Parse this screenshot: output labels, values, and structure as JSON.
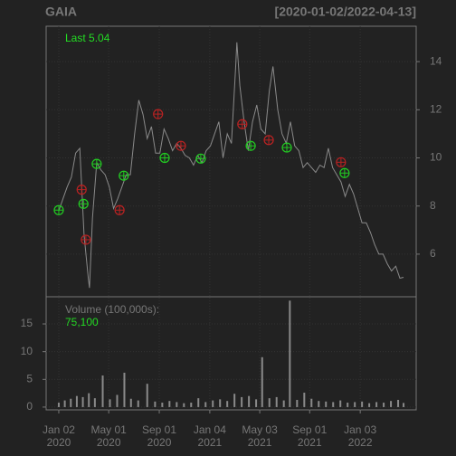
{
  "chart_data": {
    "type": "line",
    "title": "GAIA",
    "subtitle": "[2020-01-02/2022-04-13]",
    "last_label": "Last 5.04",
    "color": "#8a8a8a",
    "x": [
      0,
      7,
      14,
      21,
      28,
      35,
      42,
      49,
      51,
      56,
      63,
      70,
      77,
      84,
      91,
      98,
      105,
      112,
      119,
      126,
      133,
      140,
      147,
      154,
      161,
      168,
      175,
      182,
      189,
      196,
      203,
      210,
      217,
      224,
      231,
      238,
      245,
      252,
      259,
      266,
      273,
      280,
      287,
      294,
      296,
      301,
      308,
      315,
      322,
      329,
      336,
      343,
      350,
      356,
      364,
      371,
      378,
      385,
      392,
      399,
      406,
      413,
      420,
      427,
      434,
      441,
      448,
      455,
      462,
      469,
      476,
      483,
      490,
      497,
      504,
      511,
      518,
      525,
      532,
      539,
      546,
      553,
      560,
      567,
      573
    ],
    "values": [
      7.8,
      8.3,
      8.8,
      9.2,
      10.2,
      10.4,
      6.8,
      5.0,
      4.6,
      7.5,
      9.8,
      9.5,
      9.3,
      8.8,
      7.9,
      8.3,
      8.8,
      9.3,
      9.3,
      11.0,
      12.4,
      11.8,
      10.8,
      11.3,
      10.2,
      10.2,
      11.2,
      10.8,
      10.3,
      10.6,
      10.4,
      10.1,
      10.0,
      9.7,
      10.1,
      9.8,
      10.3,
      10.5,
      11.0,
      11.5,
      10.0,
      11.0,
      10.6,
      13.8,
      14.8,
      13.0,
      11.5,
      10.3,
      11.5,
      12.2,
      11.2,
      11.0,
      12.8,
      13.8,
      12.0,
      11.0,
      10.6,
      11.5,
      10.5,
      10.3,
      9.6,
      9.8,
      9.6,
      9.4,
      9.7,
      9.6,
      10.4,
      9.6,
      9.3,
      9.0,
      8.4,
      8.9,
      8.5,
      7.9,
      7.3,
      7.3,
      6.9,
      6.4,
      6.0,
      6.0,
      5.6,
      5.3,
      5.5,
      5.0,
      5.04
    ],
    "markers": [
      {
        "color": "#22cc22",
        "x": [
          0,
          41,
          63,
          108,
          176,
          236,
          319,
          379,
          475
        ],
        "y": [
          7.83,
          8.09,
          9.75,
          9.26,
          10.0,
          9.97,
          10.5,
          10.43,
          9.37
        ]
      },
      {
        "color": "#bb2222",
        "x": [
          38,
          45,
          101,
          165,
          203,
          305,
          349,
          469
        ],
        "y": [
          8.68,
          6.6,
          7.83,
          11.82,
          10.5,
          11.4,
          10.74,
          9.82
        ]
      }
    ],
    "xlim": [
      -21,
      594
    ],
    "xticks": [
      {
        "value": 0,
        "label": "Jan 02",
        "year": "2020"
      },
      {
        "value": 83,
        "label": "May 01",
        "year": "2020"
      },
      {
        "value": 167,
        "label": "Sep 01",
        "year": "2020"
      },
      {
        "value": 251,
        "label": "Jan 04",
        "year": "2021"
      },
      {
        "value": 334,
        "label": "May 03",
        "year": "2021"
      },
      {
        "value": 417,
        "label": "Sep 01",
        "year": "2021"
      },
      {
        "value": 501,
        "label": "Jan 03",
        "year": "2022"
      }
    ],
    "ylim": [
      4.23,
      15.47
    ],
    "yticks": [
      6,
      8,
      10,
      12,
      14
    ],
    "grid": true,
    "volume": {
      "title": "Volume (100,000s):",
      "last_label": "75,100",
      "color": "#8a8a8a",
      "x": [
        0,
        10,
        20,
        30,
        40,
        50,
        60,
        73,
        85,
        97,
        109,
        120,
        132,
        147,
        160,
        172,
        184,
        196,
        208,
        220,
        232,
        244,
        256,
        268,
        280,
        292,
        304,
        316,
        328,
        338,
        350,
        362,
        374,
        384,
        396,
        408,
        420,
        432,
        444,
        456,
        468,
        480,
        492,
        504,
        516,
        528,
        540,
        552,
        564,
        573
      ],
      "values": [
        0.8,
        1.2,
        1.5,
        2.0,
        1.8,
        2.5,
        1.6,
        5.7,
        1.4,
        2.2,
        6.2,
        1.5,
        1.2,
        4.2,
        1.0,
        0.8,
        1.1,
        0.9,
        0.7,
        0.8,
        1.6,
        0.9,
        1.2,
        1.4,
        1.1,
        2.4,
        1.8,
        2.0,
        1.4,
        9.0,
        1.6,
        1.8,
        1.2,
        19.2,
        1.3,
        2.6,
        1.5,
        1.1,
        1.0,
        0.9,
        1.2,
        0.8,
        0.9,
        1.0,
        0.7,
        0.9,
        0.8,
        1.1,
        1.3,
        0.75
      ],
      "ylim": [
        -0.5,
        19.9
      ],
      "yticks": [
        0,
        5,
        10,
        15
      ]
    }
  }
}
